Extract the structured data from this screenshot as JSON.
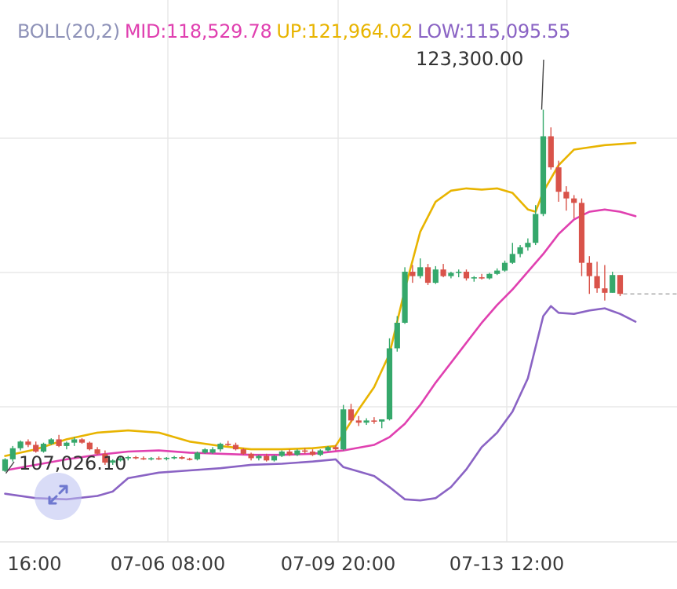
{
  "legend": {
    "boll": "BOLL(20,2)",
    "mid": "MID:118,529.78",
    "up": "UP:121,964.02",
    "low": "LOW:115,095.55"
  },
  "colors": {
    "boll": "#8e92b8",
    "mid": "#e040b0",
    "up": "#e8b400",
    "low": "#8a63c4",
    "candle_up": "#35a86b",
    "candle_down": "#d9534a",
    "grid": "#e8e8e8"
  },
  "annotations": {
    "high_label": "123,300.00",
    "low_label": "107,026.10"
  },
  "icons": {
    "expand": "expand-arrows-icon"
  },
  "chart_data": {
    "type": "candlestick",
    "indicator": "BOLL(20,2)",
    "x_tick_labels": [
      "16:00",
      "07-06 08:00",
      "07-09 20:00",
      "07-13 12:00"
    ],
    "y_range": [
      105600,
      124700
    ],
    "annotations": [
      {
        "text": "123,300.00",
        "value": 123300,
        "kind": "max"
      },
      {
        "text": "107,026.10",
        "value": 107026.1,
        "kind": "min"
      }
    ],
    "candles": [
      [
        107030,
        107600,
        106980,
        107550
      ],
      [
        107550,
        108150,
        107450,
        108050
      ],
      [
        108050,
        108400,
        107950,
        108350
      ],
      [
        108350,
        108450,
        108100,
        108200
      ],
      [
        108200,
        108350,
        107850,
        107900
      ],
      [
        107900,
        108300,
        107850,
        108250
      ],
      [
        108250,
        108500,
        108200,
        108450
      ],
      [
        108450,
        108650,
        108100,
        108150
      ],
      [
        108150,
        108350,
        108000,
        108300
      ],
      [
        108300,
        108550,
        108150,
        108450
      ],
      [
        108450,
        108500,
        108250,
        108300
      ],
      [
        108300,
        108350,
        107950,
        108000
      ],
      [
        108000,
        108100,
        107750,
        107800
      ],
      [
        107800,
        107950,
        107300,
        107400
      ],
      [
        107400,
        107550,
        107300,
        107500
      ],
      [
        107500,
        107650,
        107450,
        107600
      ],
      [
        107600,
        107700,
        107500,
        107650
      ],
      [
        107650,
        107700,
        107550,
        107600
      ],
      [
        107600,
        107680,
        107520,
        107560
      ],
      [
        107560,
        107650,
        107500,
        107600
      ],
      [
        107600,
        107680,
        107520,
        107580
      ],
      [
        107580,
        107650,
        107500,
        107620
      ],
      [
        107620,
        107700,
        107550,
        107650
      ],
      [
        107650,
        107700,
        107550,
        107580
      ],
      [
        107580,
        107620,
        107500,
        107550
      ],
      [
        107550,
        107900,
        107500,
        107850
      ],
      [
        107850,
        108050,
        107800,
        108000
      ],
      [
        107850,
        108100,
        107800,
        108000
      ],
      [
        108000,
        108300,
        107900,
        108250
      ],
      [
        108250,
        108380,
        108150,
        108200
      ],
      [
        108200,
        108300,
        107950,
        108000
      ],
      [
        108000,
        108050,
        107750,
        107800
      ],
      [
        107800,
        107850,
        107500,
        107600
      ],
      [
        107600,
        107750,
        107500,
        107700
      ],
      [
        107700,
        107800,
        107450,
        107500
      ],
      [
        107500,
        107750,
        107450,
        107700
      ],
      [
        107700,
        107950,
        107650,
        107900
      ],
      [
        107900,
        108000,
        107700,
        107750
      ],
      [
        107750,
        108000,
        107700,
        107950
      ],
      [
        107950,
        108050,
        107800,
        107900
      ],
      [
        107900,
        108000,
        107700,
        107750
      ],
      [
        107750,
        108000,
        107700,
        107950
      ],
      [
        107950,
        108150,
        107900,
        108100
      ],
      [
        108100,
        108200,
        107950,
        108000
      ],
      [
        108000,
        110000,
        107950,
        109800
      ],
      [
        109800,
        110050,
        109200,
        109300
      ],
      [
        109300,
        109500,
        109050,
        109200
      ],
      [
        109200,
        109400,
        109100,
        109300
      ],
      [
        109300,
        109450,
        109150,
        109250
      ],
      [
        109250,
        109350,
        108950,
        109350
      ],
      [
        109350,
        113000,
        109300,
        112550
      ],
      [
        112550,
        114000,
        112400,
        113700
      ],
      [
        113700,
        116200,
        113650,
        116000
      ],
      [
        116000,
        116300,
        115500,
        115800
      ],
      [
        115800,
        116600,
        115700,
        116200
      ],
      [
        116200,
        116350,
        115400,
        115500
      ],
      [
        115500,
        116250,
        115450,
        116100
      ],
      [
        116100,
        116350,
        115750,
        115800
      ],
      [
        115800,
        116000,
        115700,
        115950
      ],
      [
        115950,
        116100,
        115750,
        116000
      ],
      [
        116000,
        116100,
        115600,
        115700
      ],
      [
        115700,
        115800,
        115550,
        115750
      ],
      [
        115750,
        115900,
        115650,
        115700
      ],
      [
        115700,
        115950,
        115650,
        115900
      ],
      [
        115900,
        116150,
        115850,
        116050
      ],
      [
        116050,
        116500,
        116000,
        116400
      ],
      [
        116400,
        117300,
        116350,
        116800
      ],
      [
        116800,
        117200,
        116650,
        117100
      ],
      [
        117100,
        117500,
        116950,
        117300
      ],
      [
        117300,
        119000,
        117200,
        118600
      ],
      [
        118600,
        123300,
        118500,
        122100
      ],
      [
        122100,
        122500,
        120600,
        120700
      ],
      [
        120700,
        121000,
        119150,
        119600
      ],
      [
        119600,
        119850,
        118750,
        119300
      ],
      [
        119300,
        119450,
        118400,
        119100
      ],
      [
        119100,
        119300,
        115800,
        116400
      ],
      [
        116400,
        116700,
        115000,
        115800
      ],
      [
        115800,
        116450,
        115050,
        115250
      ],
      [
        115250,
        116300,
        114700,
        115050
      ],
      [
        115050,
        116000,
        115050,
        115850
      ],
      [
        115850,
        115850,
        114900,
        115000
      ]
    ],
    "boll_up": [
      [
        0,
        107700
      ],
      [
        4,
        108000
      ],
      [
        8,
        108450
      ],
      [
        12,
        108750
      ],
      [
        16,
        108850
      ],
      [
        20,
        108750
      ],
      [
        24,
        108350
      ],
      [
        28,
        108150
      ],
      [
        32,
        108000
      ],
      [
        36,
        108000
      ],
      [
        40,
        108050
      ],
      [
        43,
        108150
      ],
      [
        46,
        109800
      ],
      [
        48,
        110800
      ],
      [
        50,
        112300
      ],
      [
        52,
        115200
      ],
      [
        54,
        117800
      ],
      [
        56,
        119150
      ],
      [
        58,
        119650
      ],
      [
        60,
        119750
      ],
      [
        62,
        119700
      ],
      [
        64,
        119750
      ],
      [
        66,
        119550
      ],
      [
        68,
        118800
      ],
      [
        69,
        118700
      ],
      [
        70,
        119600
      ],
      [
        72,
        120800
      ],
      [
        74,
        121500
      ],
      [
        76,
        121600
      ],
      [
        78,
        121700
      ],
      [
        80,
        121750
      ],
      [
        82,
        121800
      ]
    ],
    "boll_mid": [
      [
        0,
        107050
      ],
      [
        4,
        107300
      ],
      [
        8,
        107550
      ],
      [
        12,
        107750
      ],
      [
        16,
        107900
      ],
      [
        20,
        107950
      ],
      [
        24,
        107850
      ],
      [
        28,
        107800
      ],
      [
        32,
        107750
      ],
      [
        36,
        107750
      ],
      [
        40,
        107800
      ],
      [
        44,
        107950
      ],
      [
        48,
        108200
      ],
      [
        50,
        108550
      ],
      [
        52,
        109150
      ],
      [
        54,
        110000
      ],
      [
        56,
        111000
      ],
      [
        58,
        111900
      ],
      [
        60,
        112800
      ],
      [
        62,
        113700
      ],
      [
        64,
        114500
      ],
      [
        66,
        115200
      ],
      [
        68,
        116000
      ],
      [
        70,
        116800
      ],
      [
        72,
        117700
      ],
      [
        74,
        118350
      ],
      [
        76,
        118700
      ],
      [
        78,
        118800
      ],
      [
        80,
        118700
      ],
      [
        82,
        118500
      ]
    ],
    "boll_low": [
      [
        0,
        106000
      ],
      [
        4,
        105800
      ],
      [
        8,
        105750
      ],
      [
        12,
        105900
      ],
      [
        14,
        106100
      ],
      [
        16,
        106700
      ],
      [
        20,
        106950
      ],
      [
        24,
        107050
      ],
      [
        28,
        107150
      ],
      [
        32,
        107300
      ],
      [
        36,
        107350
      ],
      [
        40,
        107450
      ],
      [
        43,
        107550
      ],
      [
        44,
        107200
      ],
      [
        46,
        107000
      ],
      [
        48,
        106800
      ],
      [
        50,
        106300
      ],
      [
        52,
        105750
      ],
      [
        54,
        105700
      ],
      [
        56,
        105800
      ],
      [
        58,
        106300
      ],
      [
        60,
        107100
      ],
      [
        62,
        108100
      ],
      [
        64,
        108750
      ],
      [
        66,
        109700
      ],
      [
        68,
        111200
      ],
      [
        70,
        114000
      ],
      [
        71,
        114450
      ],
      [
        72,
        114150
      ],
      [
        74,
        114100
      ],
      [
        76,
        114250
      ],
      [
        78,
        114350
      ],
      [
        80,
        114100
      ],
      [
        82,
        113750
      ]
    ]
  }
}
